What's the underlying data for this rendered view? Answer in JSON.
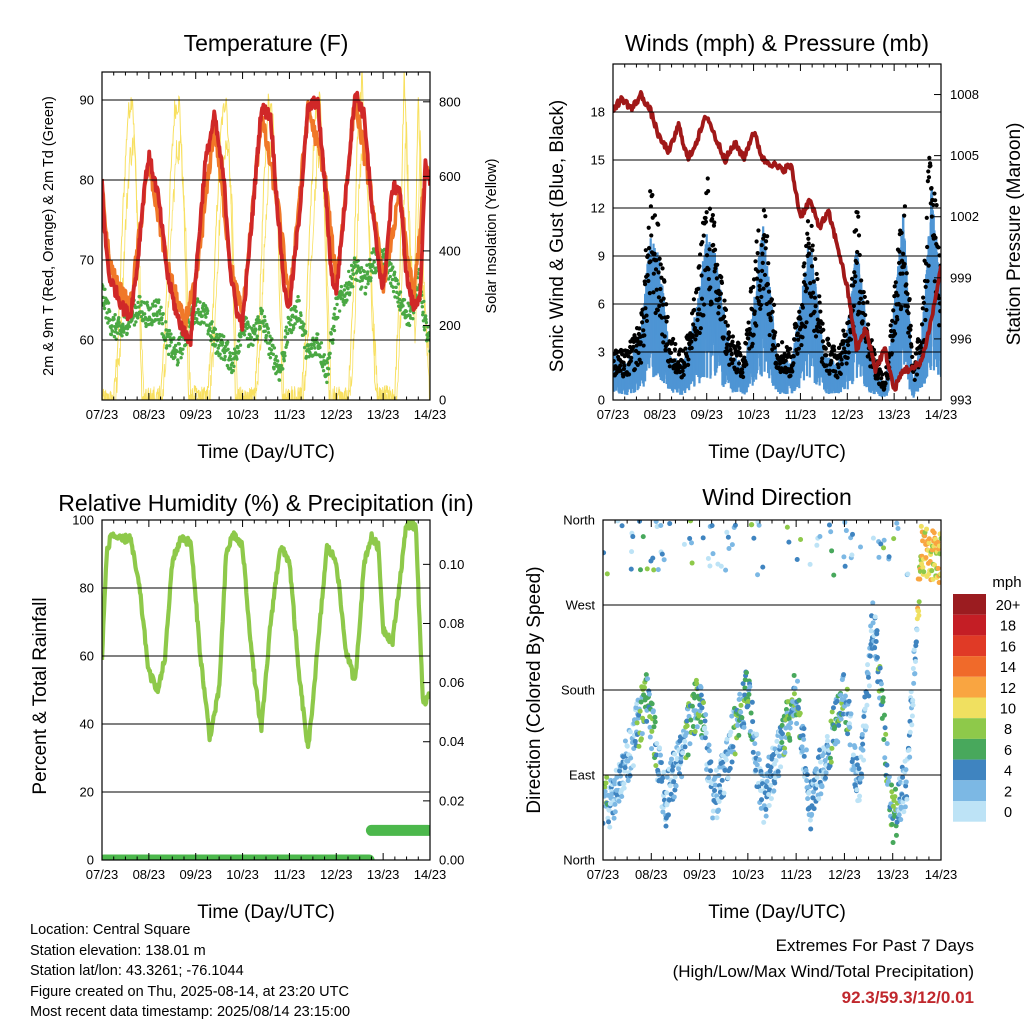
{
  "colors": {
    "temp_2m": "#d02828",
    "temp_9m": "#f07828",
    "dewpoint": "#4aa843",
    "solar": "#f8e060",
    "sonic_wind": "#4e95d4",
    "gust": "#000000",
    "pressure": "#a01818",
    "rh": "#8ec94a",
    "precip": "#4cb84c"
  },
  "x_ticks": [
    "07/23",
    "08/23",
    "09/23",
    "10/23",
    "11/23",
    "12/23",
    "13/23",
    "14/23"
  ],
  "panels": {
    "temperature": {
      "title": "Temperature (F)",
      "xlabel": "Time (Day/UTC)",
      "ylabel_left": "2m & 9m T (Red, Orange) & 2m Td (Green)",
      "ylabel_right": "Solar Insolation (Yellow)",
      "left_ticks": [
        "60",
        "70",
        "80",
        "90"
      ],
      "right_ticks": [
        "0",
        "200",
        "400",
        "600",
        "800"
      ]
    },
    "winds": {
      "title": "Winds (mph) & Pressure (mb)",
      "xlabel": "Time (Day/UTC)",
      "ylabel_left": "Sonic Wind & Gust (Blue, Black)",
      "ylabel_right": "Station Pressure (Maroon)",
      "left_ticks": [
        "0",
        "3",
        "6",
        "9",
        "12",
        "15",
        "18"
      ],
      "right_ticks": [
        "993",
        "996",
        "999",
        "1002",
        "1005",
        "1008"
      ]
    },
    "humidity": {
      "title": "Relative Humidity (%) & Precipitation (in)",
      "xlabel": "Time (Day/UTC)",
      "ylabel_left": "Percent & Total Rainfall",
      "left_ticks": [
        "0",
        "20",
        "40",
        "60",
        "80",
        "100"
      ],
      "right_ticks": [
        "0.00",
        "0.02",
        "0.04",
        "0.06",
        "0.08",
        "0.10"
      ]
    },
    "direction": {
      "title": "Wind Direction",
      "xlabel": "Time (Day/UTC)",
      "ylabel_left": "Direction (Colored By Speed)",
      "left_ticks": [
        "North",
        "East",
        "South",
        "West",
        "North"
      ],
      "legend_title": "mph",
      "legend_labels": [
        "20+",
        "18",
        "16",
        "14",
        "12",
        "10",
        "8",
        "6",
        "4",
        "2",
        "0"
      ],
      "legend_colors": [
        "#9b1c20",
        "#c41e25",
        "#e03a26",
        "#f06a2a",
        "#f9a541",
        "#f0e060",
        "#8ec94a",
        "#48a85c",
        "#3f84c0",
        "#7cb8e4",
        "#bde3f6"
      ]
    }
  },
  "chart_data": [
    {
      "type": "line",
      "title": "Temperature (F)",
      "xlabel": "Time (Day/UTC)",
      "ylabel": "2m & 9m T (Red, Orange) & 2m Td (Green)",
      "y2label": "Solar Insolation (Yellow)",
      "xlim": [
        0,
        7
      ],
      "ylim": [
        52.5,
        93.5
      ],
      "y2lim": [
        0,
        880
      ],
      "series": [
        {
          "name": "2m T",
          "x": [
            0,
            0.05,
            0.15,
            0.3,
            0.45,
            0.6,
            0.75,
            0.9,
            1.0,
            1.2,
            1.4,
            1.6,
            1.75,
            1.9,
            2.0,
            2.2,
            2.4,
            2.6,
            2.75,
            2.9,
            3.0,
            3.2,
            3.4,
            3.6,
            3.75,
            3.9,
            4.0,
            4.2,
            4.4,
            4.6,
            4.75,
            4.9,
            5.0,
            5.2,
            5.4,
            5.6,
            5.75,
            5.9,
            6.0,
            6.2,
            6.35,
            6.5,
            6.65,
            6.8,
            6.9,
            7.0
          ],
          "values": [
            80,
            74,
            68,
            66,
            64,
            63,
            69,
            79,
            83,
            78,
            68,
            63,
            61,
            60,
            68,
            82,
            88,
            80,
            68,
            63,
            62,
            75,
            89,
            88,
            76,
            66,
            64,
            75,
            89,
            90,
            80,
            68,
            66,
            78,
            91,
            88,
            77,
            70,
            66,
            79,
            79,
            68,
            64,
            66,
            82,
            80
          ]
        },
        {
          "name": "9m T",
          "x": [
            0,
            0.15,
            0.3,
            0.6,
            0.9,
            1.0,
            1.4,
            1.75,
            2.0,
            2.4,
            2.75,
            3.0,
            3.4,
            3.75,
            4.0,
            4.4,
            4.75,
            5.0,
            5.4,
            5.75,
            6.0,
            6.35,
            6.65,
            6.9,
            7.0
          ],
          "values": [
            79,
            70,
            67,
            64,
            78,
            82,
            69,
            62,
            67,
            87,
            69,
            63,
            88,
            77,
            65,
            89,
            81,
            67,
            90,
            78,
            67,
            78,
            65,
            81,
            80
          ]
        },
        {
          "name": "2m Td",
          "x": [
            0,
            0.2,
            0.4,
            0.6,
            0.8,
            1.0,
            1.2,
            1.4,
            1.6,
            1.8,
            2.0,
            2.2,
            2.4,
            2.6,
            2.8,
            3.0,
            3.2,
            3.4,
            3.6,
            3.8,
            4.0,
            4.2,
            4.4,
            4.6,
            4.8,
            5.0,
            5.2,
            5.4,
            5.6,
            5.8,
            6.0,
            6.2,
            6.4,
            6.6,
            6.75,
            6.9,
            7.0
          ],
          "values": [
            66,
            62,
            61,
            63,
            64,
            63,
            64,
            60,
            58,
            61,
            64,
            63,
            60,
            59,
            57,
            62,
            60,
            63,
            59,
            56,
            62,
            64,
            58,
            60,
            56,
            64,
            66,
            69,
            67,
            70,
            70,
            68,
            64,
            63,
            68,
            62,
            59
          ]
        },
        {
          "name": "Solar Insolation",
          "axis": "right",
          "x": [
            0,
            0.25,
            0.35,
            0.45,
            0.55,
            0.65,
            0.75,
            0.85,
            1.25,
            1.35,
            1.45,
            1.55,
            1.65,
            1.75,
            1.85,
            2.25,
            2.35,
            2.45,
            2.55,
            2.65,
            2.75,
            2.85,
            3.25,
            3.35,
            3.45,
            3.55,
            3.65,
            3.75,
            3.85,
            4.25,
            4.35,
            4.45,
            4.55,
            4.65,
            4.75,
            4.85,
            5.25,
            5.35,
            5.45,
            5.55,
            5.65,
            5.75,
            5.85,
            6.25,
            6.35,
            6.45,
            6.55,
            6.65,
            6.75,
            6.85,
            7.0
          ],
          "values": [
            0,
            0,
            180,
            520,
            760,
            820,
            500,
            0,
            0,
            200,
            560,
            780,
            800,
            520,
            0,
            0,
            180,
            500,
            740,
            820,
            560,
            0,
            0,
            200,
            560,
            800,
            780,
            480,
            0,
            0,
            180,
            520,
            760,
            820,
            500,
            0,
            0,
            240,
            700,
            860,
            620,
            260,
            0,
            0,
            320,
            880,
            460,
            200,
            820,
            300,
            0
          ]
        }
      ]
    },
    {
      "type": "line",
      "title": "Winds (mph) & Pressure (mb)",
      "xlabel": "Time (Day/UTC)",
      "ylabel": "Sonic Wind & Gust (Blue, Black)",
      "y2label": "Station Pressure (Maroon)",
      "xlim": [
        0,
        7
      ],
      "ylim": [
        0,
        21
      ],
      "y2lim": [
        993,
        1009.5
      ],
      "series": [
        {
          "name": "Sonic Wind",
          "x": [
            0,
            0.3,
            0.6,
            0.8,
            1.0,
            1.2,
            1.5,
            1.8,
            2.0,
            2.2,
            2.5,
            2.8,
            3.0,
            3.2,
            3.5,
            3.8,
            4.0,
            4.2,
            4.5,
            4.8,
            5.0,
            5.2,
            5.5,
            5.8,
            6.0,
            6.2,
            6.4,
            6.6,
            6.8,
            7.0
          ],
          "values": [
            2,
            1.5,
            3,
            7,
            6,
            2,
            1.5,
            4,
            7,
            6,
            2,
            1.5,
            4,
            7.5,
            2,
            1.5,
            4,
            7,
            2,
            1.5,
            3,
            6.5,
            2,
            0.5,
            4,
            8,
            0.5,
            3,
            9,
            5
          ]
        },
        {
          "name": "Gust",
          "x": [
            0,
            0.3,
            0.6,
            0.8,
            1.0,
            1.2,
            1.5,
            1.8,
            2.0,
            2.2,
            2.5,
            2.8,
            3.0,
            3.2,
            3.5,
            3.8,
            4.0,
            4.2,
            4.5,
            4.8,
            5.0,
            5.2,
            5.5,
            5.8,
            6.0,
            6.2,
            6.4,
            6.6,
            6.8,
            7.0
          ],
          "values": [
            3,
            3,
            5,
            13,
            10,
            4,
            3,
            7,
            14,
            10,
            4,
            3,
            8,
            13,
            4,
            3,
            7,
            12,
            4,
            3,
            5,
            12,
            4,
            1,
            7,
            14,
            2,
            5,
            19,
            8
          ]
        },
        {
          "name": "Station Pressure",
          "axis": "right",
          "x": [
            0,
            0.2,
            0.4,
            0.6,
            0.8,
            1.0,
            1.2,
            1.4,
            1.6,
            1.8,
            2.0,
            2.2,
            2.4,
            2.6,
            2.8,
            3.0,
            3.2,
            3.4,
            3.6,
            3.8,
            4.0,
            4.2,
            4.4,
            4.6,
            4.8,
            5.0,
            5.2,
            5.4,
            5.6,
            5.8,
            6.0,
            6.2,
            6.4,
            6.6,
            6.8,
            7.0
          ],
          "values": [
            1007.3,
            1007.8,
            1007.3,
            1008.0,
            1007.2,
            1005.8,
            1005.2,
            1006.5,
            1004.8,
            1005.8,
            1007.0,
            1005.8,
            1004.8,
            1005.6,
            1004.9,
            1006.2,
            1004.8,
            1004.6,
            1004.3,
            1004.5,
            1002.0,
            1002.8,
            1001.5,
            1002.2,
            1000.5,
            998.5,
            995.5,
            996.5,
            994.5,
            995.5,
            993.5,
            994.5,
            994.5,
            995.0,
            997.0,
            999.5
          ]
        }
      ]
    },
    {
      "type": "line",
      "title": "Relative Humidity (%) & Precipitation (in)",
      "xlabel": "Time (Day/UTC)",
      "ylabel": "Percent & Total Rainfall",
      "xlim": [
        0,
        7
      ],
      "ylim": [
        0,
        100
      ],
      "y2lim": [
        0,
        0.115
      ],
      "series": [
        {
          "name": "Relative Humidity",
          "x": [
            0,
            0.1,
            0.2,
            0.4,
            0.6,
            0.8,
            1.0,
            1.2,
            1.35,
            1.5,
            1.7,
            1.9,
            2.1,
            2.3,
            2.5,
            2.65,
            2.8,
            3.0,
            3.2,
            3.4,
            3.6,
            3.8,
            4.0,
            4.2,
            4.4,
            4.6,
            4.8,
            5.0,
            5.2,
            5.4,
            5.6,
            5.75,
            5.9,
            6.0,
            6.2,
            6.5,
            6.7,
            6.85,
            7.0
          ],
          "values": [
            60,
            90,
            96,
            94,
            95,
            80,
            55,
            50,
            60,
            88,
            95,
            93,
            60,
            36,
            50,
            90,
            96,
            92,
            60,
            38,
            70,
            92,
            88,
            55,
            32,
            62,
            92,
            88,
            62,
            52,
            88,
            95,
            92,
            68,
            64,
            99,
            98,
            45,
            50
          ]
        },
        {
          "name": "Total Rainfall",
          "axis": "right",
          "x": [
            0,
            5.7,
            5.75,
            7.0
          ],
          "values": [
            0.0,
            0.0,
            0.01,
            0.01
          ]
        }
      ]
    },
    {
      "type": "scatter",
      "title": "Wind Direction",
      "xlabel": "Time (Day/UTC)",
      "ylabel": "Direction (Colored By Speed)",
      "xlim": [
        0,
        7
      ],
      "y_categories": [
        "North",
        "East",
        "South",
        "West",
        "North"
      ],
      "ylim": [
        0,
        360
      ],
      "legend": {
        "title": "mph",
        "labels": [
          "20+",
          "18",
          "16",
          "14",
          "12",
          "10",
          "8",
          "6",
          "4",
          "2",
          "0"
        ],
        "placement": "right"
      },
      "series": [
        {
          "name": "Direction",
          "x": [
            0.2,
            0.6,
            0.9,
            1.3,
            1.6,
            2.0,
            2.3,
            2.6,
            3.0,
            3.3,
            3.6,
            4.0,
            4.3,
            4.6,
            5.0,
            5.3,
            5.6,
            6.0,
            6.3,
            6.6,
            6.9
          ],
          "values": [
            60,
            120,
            175,
            60,
            110,
            175,
            60,
            115,
            180,
            60,
            110,
            175,
            60,
            110,
            175,
            70,
            260,
            40,
            90,
            330,
            320
          ]
        }
      ]
    }
  ],
  "footer": {
    "location": "Location: Central Square",
    "elevation": "Station elevation: 138.01 m",
    "latlon": "Station lat/lon: 43.3261; -76.1044",
    "created": "Figure created on Thu, 2025-08-14, at 23:20 UTC",
    "recent": "Most recent data timestamp: 2025/08/14 23:15:00"
  },
  "extremes": {
    "line1": "Extremes For Past 7 Days",
    "line2": "(High/Low/Max Wind/Total Precipitation)",
    "values": "92.3/59.3/12/0.01"
  }
}
